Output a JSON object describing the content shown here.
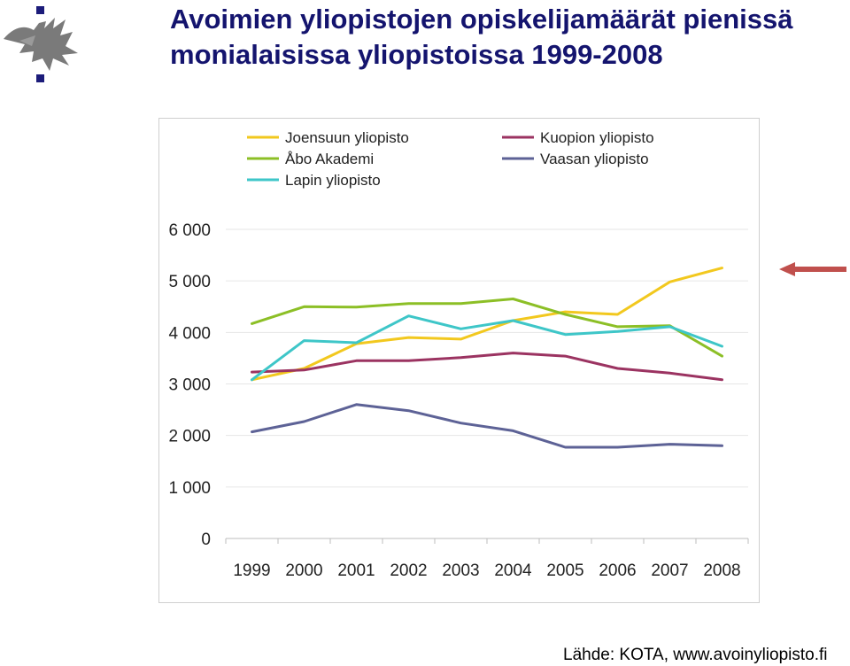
{
  "slide": {
    "title_line1": "Avoimien yliopistojen opiskelijamäärät pienissä",
    "title_line2": "monialaisissa yliopistoissa 1999-2008",
    "source": "Lähde: KOTA, www.avoinyliopisto.fi",
    "logo_icon": "helsinki-university-flame-logo-icon",
    "arrow_icon": "left-arrow-icon",
    "title_color": "#14146e",
    "arrow_color": "#c0504d"
  },
  "chart_data": {
    "type": "line",
    "title": "",
    "xlabel": "",
    "ylabel": "",
    "categories": [
      "1999",
      "2000",
      "2001",
      "2002",
      "2003",
      "2004",
      "2005",
      "2006",
      "2007",
      "2008"
    ],
    "ylim": [
      0,
      6000
    ],
    "yticks": [
      0,
      1000,
      2000,
      3000,
      4000,
      5000,
      6000
    ],
    "ytick_labels": [
      "0",
      "1 000",
      "2 000",
      "3 000",
      "4 000",
      "5 000",
      "6 000"
    ],
    "grid": true,
    "legend_position": "top",
    "series": [
      {
        "name": "Joensuun yliopisto",
        "color": "#f2c81e",
        "values": [
          3080,
          3300,
          3780,
          3900,
          3870,
          4230,
          4400,
          4350,
          4980,
          5250
        ]
      },
      {
        "name": "Kuopion yliopisto",
        "color": "#9b3361",
        "values": [
          3230,
          3270,
          3450,
          3450,
          3510,
          3600,
          3540,
          3300,
          3210,
          3080
        ]
      },
      {
        "name": "Åbo Akademi",
        "color": "#8cbf26",
        "values": [
          4170,
          4500,
          4490,
          4560,
          4560,
          4650,
          4350,
          4110,
          4130,
          3540
        ]
      },
      {
        "name": "Vaasan yliopisto",
        "color": "#5d6296",
        "values": [
          2070,
          2270,
          2600,
          2480,
          2240,
          2090,
          1770,
          1770,
          1830,
          1800
        ]
      },
      {
        "name": "Lapin yliopisto",
        "color": "#3ec6c8",
        "values": [
          3080,
          3840,
          3800,
          4320,
          4070,
          4230,
          3960,
          4020,
          4110,
          3730
        ]
      }
    ]
  }
}
